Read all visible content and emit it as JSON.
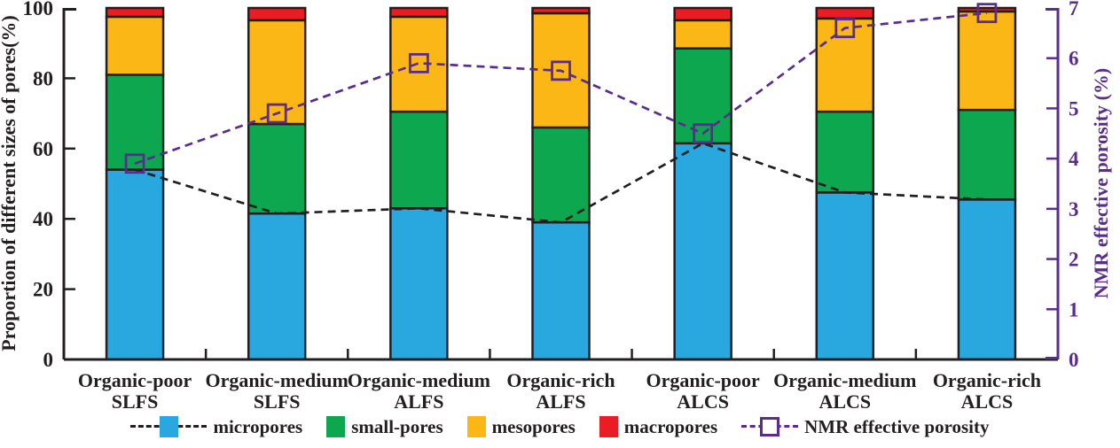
{
  "chart_data": {
    "type": "bar",
    "stacked": true,
    "grid": false,
    "legend_position": "bottom",
    "categories": [
      {
        "line1": "Organic-poor",
        "line2": "SLFS"
      },
      {
        "line1": "Organic-medium",
        "line2": "SLFS"
      },
      {
        "line1": "Organic-medium",
        "line2": "ALFS"
      },
      {
        "line1": "Organic-rich",
        "line2": "ALFS"
      },
      {
        "line1": "Organic-poor",
        "line2": "ALCS"
      },
      {
        "line1": "Organic-medium",
        "line2": "ALCS"
      },
      {
        "line1": "Organic-rich",
        "line2": "ALCS"
      }
    ],
    "bar_series": [
      {
        "name": "micropores",
        "color": "#29A8E0",
        "values": [
          54.0,
          41.5,
          43.0,
          39.0,
          61.5,
          47.5,
          45.5
        ]
      },
      {
        "name": "small-pores",
        "color": "#0DA750",
        "values": [
          27.0,
          25.5,
          27.5,
          27.0,
          27.0,
          23.0,
          25.5
        ]
      },
      {
        "name": "mesopores",
        "color": "#FBB715",
        "values": [
          16.5,
          29.5,
          27.0,
          32.5,
          8.0,
          26.5,
          28.0
        ]
      },
      {
        "name": "macropores",
        "color": "#EA1C24",
        "values": [
          2.5,
          3.5,
          2.5,
          1.5,
          3.5,
          3.0,
          1.0
        ]
      }
    ],
    "line_series": [
      {
        "name": "micropores trend",
        "axis": "left",
        "color": "#231F20",
        "style": "dashed",
        "marker": "none",
        "values": [
          54.0,
          41.5,
          43.0,
          39.0,
          61.5,
          47.5,
          45.5
        ]
      },
      {
        "name": "NMR effective porosity",
        "axis": "right",
        "color": "#5B2C90",
        "style": "dashed",
        "marker": "open-square",
        "values": [
          3.9,
          4.9,
          5.9,
          5.75,
          4.5,
          6.6,
          6.9
        ]
      }
    ],
    "left_axis": {
      "label": "Proportion of different sizes of pores(%)",
      "ticks": [
        0,
        20,
        40,
        60,
        80,
        100
      ],
      "range": [
        0,
        100
      ],
      "color": "#231F20"
    },
    "right_axis": {
      "label": "NMR effective porosity (%)",
      "ticks": [
        0,
        1,
        2,
        3,
        4,
        5,
        6,
        7
      ],
      "range": [
        0,
        7
      ],
      "color": "#5B2C90"
    },
    "legend": [
      {
        "label": "micropores",
        "swatch": "box-dashed-line",
        "color": "#29A8E0",
        "line_color": "#231F20"
      },
      {
        "label": "small-pores",
        "swatch": "box",
        "color": "#0DA750"
      },
      {
        "label": "mesopores",
        "swatch": "box",
        "color": "#FBB715"
      },
      {
        "label": "macropores",
        "swatch": "box",
        "color": "#EA1C24"
      },
      {
        "label": "NMR effective porosity",
        "swatch": "dashed-open-square",
        "color": "#5B2C90"
      }
    ]
  }
}
